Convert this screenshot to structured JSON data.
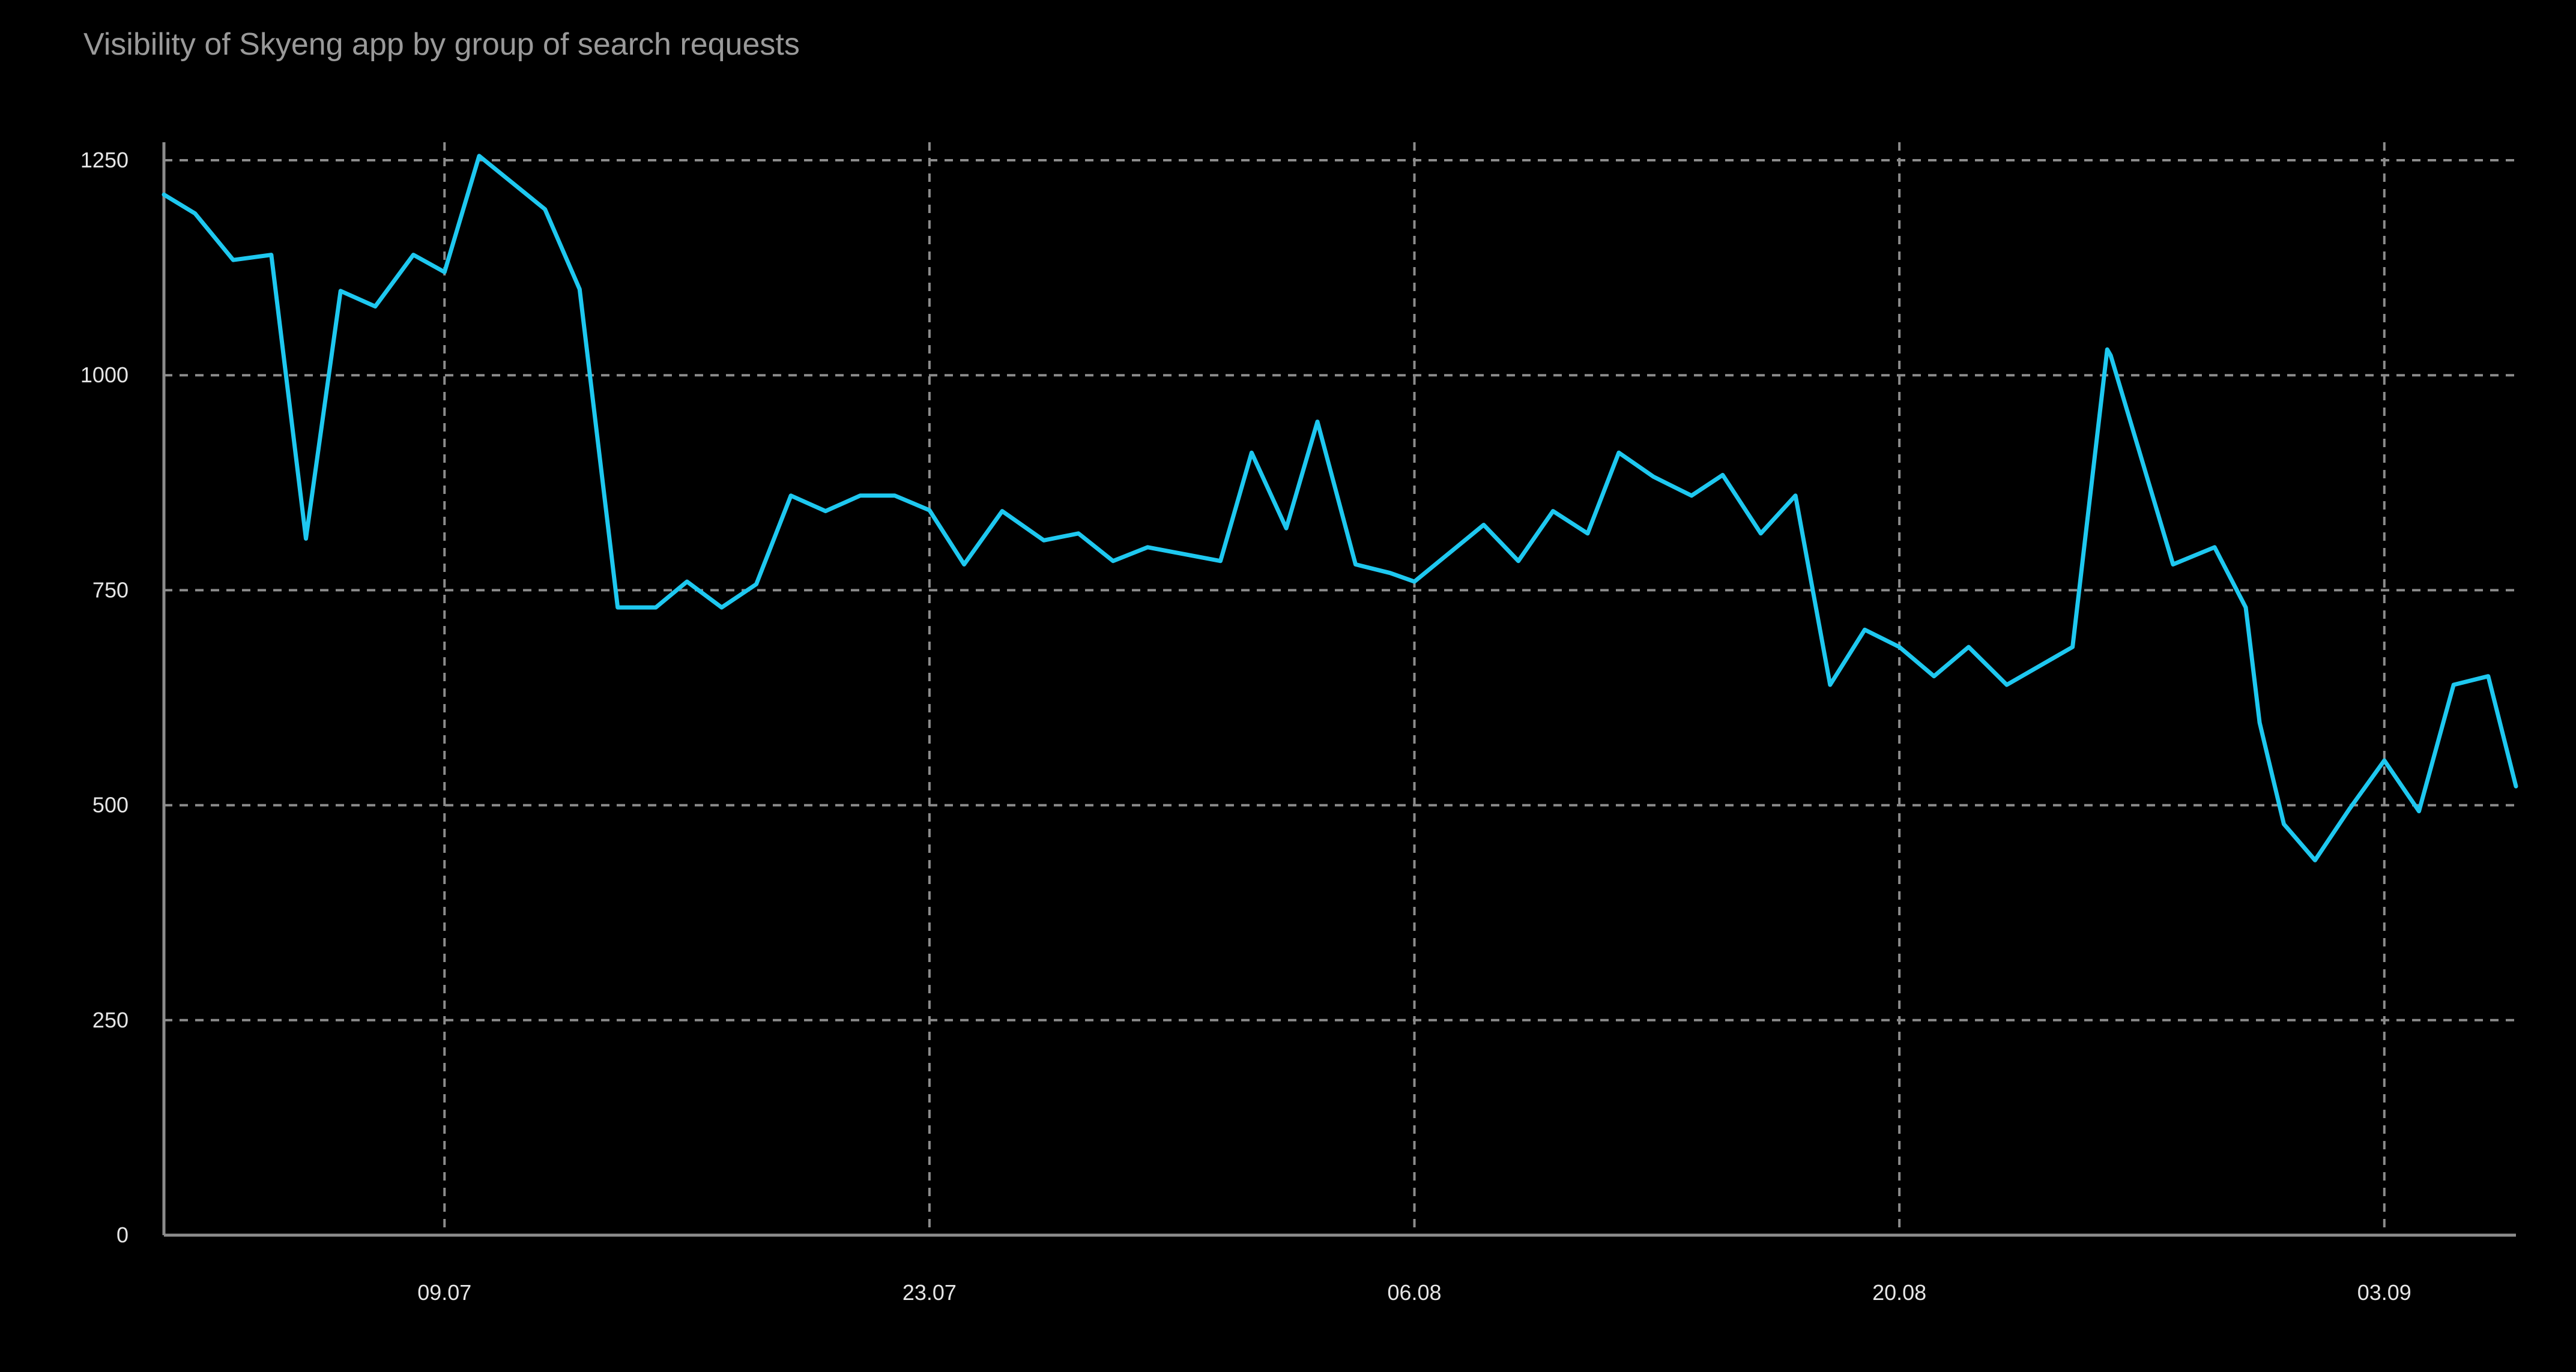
{
  "colors": {
    "background": "#000000",
    "line": "#1ec8f0",
    "grid": "#8c8c8c",
    "axis": "#8c8c8c",
    "title": "#9a9a9a",
    "tick_text": "#e6e6e6"
  },
  "chart_data": {
    "type": "line",
    "title": "Visibility of Skyeng app by group of search requests",
    "xlabel": "",
    "ylabel": "",
    "x_ticks": [
      {
        "label": "09.07",
        "x": 8
      },
      {
        "label": "23.07",
        "x": 22
      },
      {
        "label": "06.08",
        "x": 36
      },
      {
        "label": "20.08",
        "x": 50
      },
      {
        "label": "03.09",
        "x": 64
      }
    ],
    "y_ticks": [
      0,
      250,
      500,
      750,
      1000,
      1250
    ],
    "xlim": [
      -0.1,
      67.8
    ],
    "ylim": [
      0,
      1250
    ],
    "grid": true,
    "legend": "none",
    "series": [
      {
        "name": "",
        "x": [
          -0.1,
          0.8,
          1.9,
          3.0,
          4.0,
          5.0,
          6.0,
          7.1,
          8.0,
          9.0,
          10.9,
          11.9,
          13.0,
          14.1,
          15.0,
          16.0,
          17.0,
          18.0,
          19.0,
          20.0,
          21.0,
          22.0,
          23.0,
          24.1,
          25.3,
          26.3,
          27.3,
          28.3,
          30.4,
          31.3,
          32.3,
          33.2,
          34.3,
          35.3,
          36.0,
          38.0,
          39.0,
          40.0,
          41.0,
          41.9,
          42.9,
          44.0,
          44.9,
          46.0,
          47.0,
          48.0,
          49.0,
          50.0,
          51.0,
          52.0,
          53.1,
          55.0,
          56.0,
          56.1,
          57.9,
          59.1,
          60.0,
          60.4,
          61.1,
          62.0,
          63.0,
          64.0,
          65.0,
          66.0,
          67.0,
          67.8
        ],
        "y": [
          1210,
          1188,
          1134,
          1140,
          810,
          1098,
          1080,
          1140,
          1120,
          1255,
          1193,
          1100,
          730,
          730,
          760,
          730,
          757,
          860,
          842,
          860,
          860,
          843,
          780,
          842,
          808,
          816,
          784,
          800,
          784,
          910,
          822,
          946,
          780,
          770,
          760,
          826,
          784,
          842,
          816,
          910,
          882,
          860,
          884,
          816,
          860,
          640,
          704,
          684,
          650,
          684,
          640,
          684,
          1030,
          1023,
          780,
          800,
          730,
          596,
          478,
          436,
          496,
          552,
          493,
          640,
          650,
          522
        ]
      }
    ]
  }
}
